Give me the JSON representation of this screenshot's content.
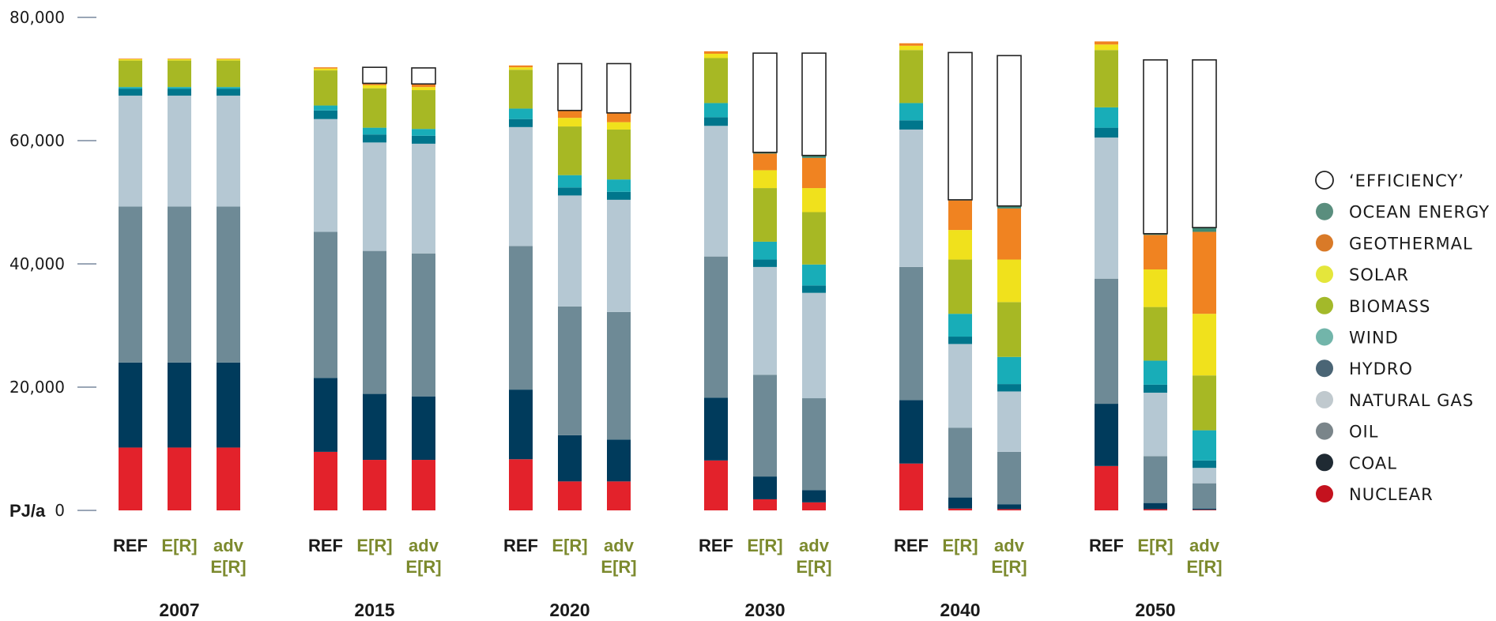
{
  "chart_data": {
    "type": "bar",
    "stacked": true,
    "ylim": [
      0,
      80000
    ],
    "unit_label": "PJ/a",
    "y_ticks": [
      {
        "value": 0,
        "label": "0"
      },
      {
        "value": 20000,
        "label": "20,000"
      },
      {
        "value": 40000,
        "label": "40,000"
      },
      {
        "value": 60000,
        "label": "60,000"
      },
      {
        "value": 80000,
        "label": "80,000"
      }
    ],
    "legend_position": "right",
    "series": [
      {
        "key": "nuclear",
        "name": "NUCLEAR",
        "color": "#e3222b",
        "legend_color": "#c4121e"
      },
      {
        "key": "coal",
        "name": "COAL",
        "color": "#003b5c",
        "legend_color": "#1f2a33"
      },
      {
        "key": "oil",
        "name": "OIL",
        "color": "#6e8a96",
        "legend_color": "#7a858a"
      },
      {
        "key": "natural_gas",
        "name": "NATURAL GAS",
        "color": "#b5c8d3",
        "legend_color": "#c0c9ce"
      },
      {
        "key": "hydro",
        "name": "HYDRO",
        "color": "#00768c",
        "legend_color": "#4a6575"
      },
      {
        "key": "wind",
        "name": "WIND",
        "color": "#18adb8",
        "legend_color": "#72b5aa"
      },
      {
        "key": "biomass",
        "name": "BIOMASS",
        "color": "#a7b824",
        "legend_color": "#a3b92a"
      },
      {
        "key": "solar",
        "name": "SOLAR",
        "color": "#f0e11c",
        "legend_color": "#e4e63b"
      },
      {
        "key": "geothermal",
        "name": "GEOTHERMAL",
        "color": "#f08321",
        "legend_color": "#d97a28"
      },
      {
        "key": "ocean",
        "name": "OCEAN ENERGY",
        "color": "#3f8a73",
        "legend_color": "#5a8e7e"
      },
      {
        "key": "efficiency",
        "name": "‘EFFICIENCY’",
        "color": "#ffffff",
        "legend_color": "#ffffff"
      }
    ],
    "groups": [
      {
        "year": "2007",
        "bars": [
          {
            "label": [
              "REF"
            ],
            "label_color": "#1a1a1a",
            "values": [
              10200,
              13800,
              25300,
              18000,
              1100,
              300,
              4300,
              200,
              100,
              0,
              0
            ]
          },
          {
            "label": [
              "E[R]"
            ],
            "label_color": "#7c8a2e",
            "values": [
              10200,
              13800,
              25300,
              18000,
              1100,
              300,
              4300,
              200,
              100,
              0,
              0
            ]
          },
          {
            "label": [
              "adv",
              "E[R]"
            ],
            "label_color": "#7c8a2e",
            "values": [
              10200,
              13800,
              25300,
              18000,
              1100,
              300,
              4300,
              200,
              100,
              0,
              0
            ]
          }
        ]
      },
      {
        "year": "2015",
        "bars": [
          {
            "label": [
              "REF"
            ],
            "label_color": "#1a1a1a",
            "values": [
              9500,
              12000,
              23700,
              18300,
              1400,
              800,
              5700,
              300,
              200,
              0,
              0
            ]
          },
          {
            "label": [
              "E[R]"
            ],
            "label_color": "#7c8a2e",
            "values": [
              8200,
              10700,
              23200,
              17600,
              1300,
              1100,
              6400,
              500,
              300,
              0,
              2600
            ]
          },
          {
            "label": [
              "adv",
              "E[R]"
            ],
            "label_color": "#7c8a2e",
            "values": [
              8200,
              10300,
              23200,
              17800,
              1300,
              1100,
              6300,
              500,
              500,
              0,
              2600
            ]
          }
        ]
      },
      {
        "year": "2020",
        "bars": [
          {
            "label": [
              "REF"
            ],
            "label_color": "#1a1a1a",
            "values": [
              8300,
              11300,
              23300,
              19300,
              1300,
              1700,
              6300,
              400,
              300,
              0,
              0
            ]
          },
          {
            "label": [
              "E[R]"
            ],
            "label_color": "#7c8a2e",
            "values": [
              4700,
              7500,
              20900,
              18000,
              1300,
              2000,
              7900,
              1400,
              1200,
              0,
              7600
            ]
          },
          {
            "label": [
              "adv",
              "E[R]"
            ],
            "label_color": "#7c8a2e",
            "values": [
              4700,
              6800,
              20700,
              18200,
              1300,
              2000,
              8100,
              1200,
              1500,
              0,
              8000
            ]
          }
        ]
      },
      {
        "year": "2030",
        "bars": [
          {
            "label": [
              "REF"
            ],
            "label_color": "#1a1a1a",
            "values": [
              8100,
              10200,
              22900,
              21200,
              1400,
              2300,
              7300,
              700,
              400,
              0,
              0
            ]
          },
          {
            "label": [
              "E[R]"
            ],
            "label_color": "#7c8a2e",
            "values": [
              1800,
              3700,
              16500,
              17500,
              1200,
              2900,
              8700,
              2900,
              2700,
              200,
              16100
            ]
          },
          {
            "label": [
              "adv",
              "E[R]"
            ],
            "label_color": "#7c8a2e",
            "values": [
              1300,
              2000,
              14900,
              17100,
              1200,
              3400,
              8500,
              3900,
              4900,
              400,
              16600
            ]
          }
        ]
      },
      {
        "year": "2040",
        "bars": [
          {
            "label": [
              "REF"
            ],
            "label_color": "#1a1a1a",
            "values": [
              7600,
              10300,
              21600,
              22300,
              1500,
              2800,
              8600,
              700,
              400,
              0,
              0
            ]
          },
          {
            "label": [
              "E[R]"
            ],
            "label_color": "#7c8a2e",
            "values": [
              300,
              1800,
              11300,
              13600,
              1200,
              3700,
              8800,
              4800,
              4800,
              100,
              23900
            ]
          },
          {
            "label": [
              "adv",
              "E[R]"
            ],
            "label_color": "#7c8a2e",
            "values": [
              200,
              800,
              8500,
              9800,
              1200,
              4400,
              8900,
              6900,
              8300,
              400,
              24400
            ]
          }
        ]
      },
      {
        "year": "2050",
        "bars": [
          {
            "label": [
              "REF"
            ],
            "label_color": "#1a1a1a",
            "values": [
              7200,
              10100,
              20300,
              22900,
              1600,
              3300,
              9300,
              900,
              500,
              0,
              0
            ]
          },
          {
            "label": [
              "E[R]"
            ],
            "label_color": "#7c8a2e",
            "values": [
              200,
              1000,
              7600,
              10300,
              1300,
              3900,
              8700,
              6100,
              5600,
              200,
              28200
            ]
          },
          {
            "label": [
              "adv",
              "E[R]"
            ],
            "label_color": "#7c8a2e",
            "values": [
              100,
              200,
              4100,
              2500,
              1200,
              4900,
              8900,
              10000,
              13300,
              700,
              27200
            ]
          }
        ]
      }
    ]
  }
}
